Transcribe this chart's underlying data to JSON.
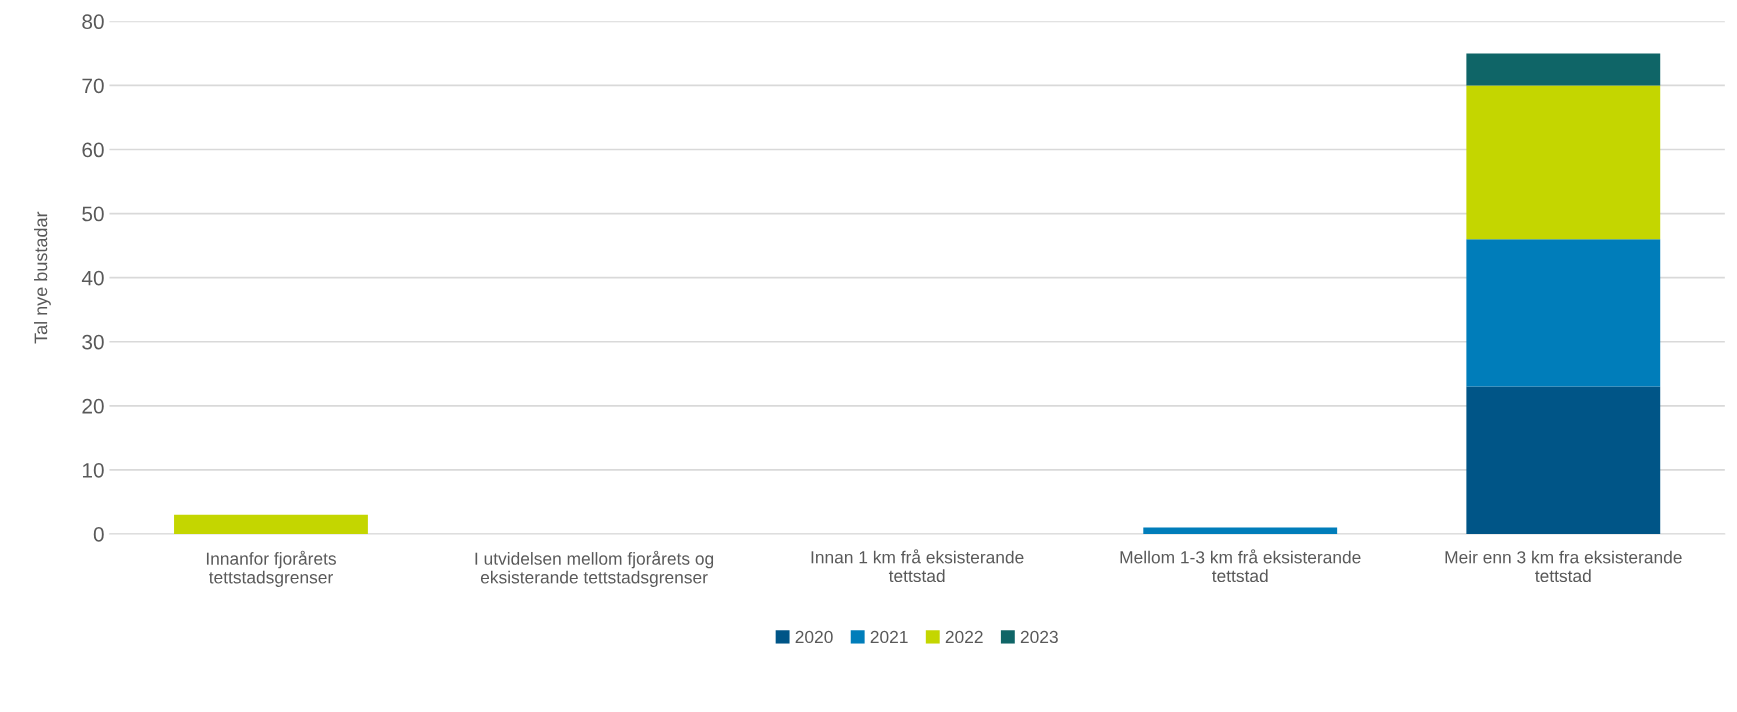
{
  "chart_data": {
    "type": "bar",
    "stacked": true,
    "ylabel": "Tal nye bustadar",
    "categories": [
      "Innanfor fjorårets\ntettstadsgrenser",
      "I utvidelsen mellom fjorårets og\neksisterande tettstadsgrenser",
      "Innan 1 km frå eksisterande\ntettstad",
      "Mellom 1-3 km frå eksisterande\ntettstad",
      "Meir enn 3 km fra eksisterande\ntettstad"
    ],
    "series": [
      {
        "name": "2020",
        "color": "#005587",
        "values": [
          0,
          0,
          0,
          0,
          23
        ]
      },
      {
        "name": "2021",
        "color": "#007dba",
        "values": [
          0,
          0,
          0,
          1,
          23
        ]
      },
      {
        "name": "2022",
        "color": "#c4d600",
        "values": [
          3,
          0,
          0,
          0,
          24
        ]
      },
      {
        "name": "2023",
        "color": "#0f6567",
        "values": [
          0,
          0,
          0,
          0,
          5
        ]
      }
    ],
    "ylim": [
      0,
      80
    ],
    "yticks": [
      0,
      10,
      20,
      30,
      40,
      50,
      60,
      70,
      80
    ],
    "grid": "y",
    "legend": "bottom"
  }
}
